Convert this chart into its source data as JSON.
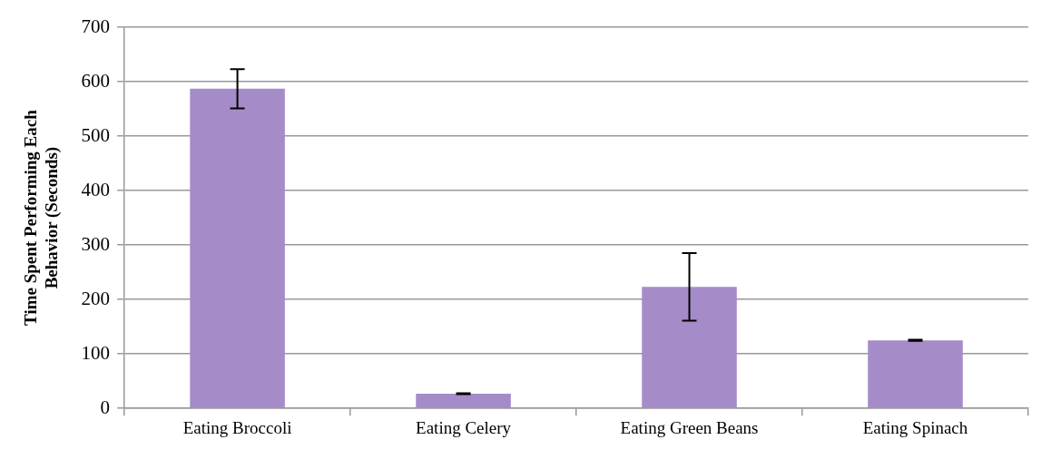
{
  "chart_data": {
    "type": "bar",
    "ylabel": "Time Spent Performing Each Behavior (Seconds)",
    "categories": [
      "Eating Broccoli",
      "Eating Celery",
      "Eating Green Beans",
      "Eating Spinach"
    ],
    "values": [
      587,
      27,
      223,
      125
    ],
    "errors": [
      36,
      1,
      62,
      1
    ],
    "color": "#a68bc9",
    "ylim": [
      0,
      700
    ],
    "yticks": [
      0,
      100,
      200,
      300,
      400,
      500,
      600,
      700
    ],
    "grid": "y",
    "legend": false
  }
}
